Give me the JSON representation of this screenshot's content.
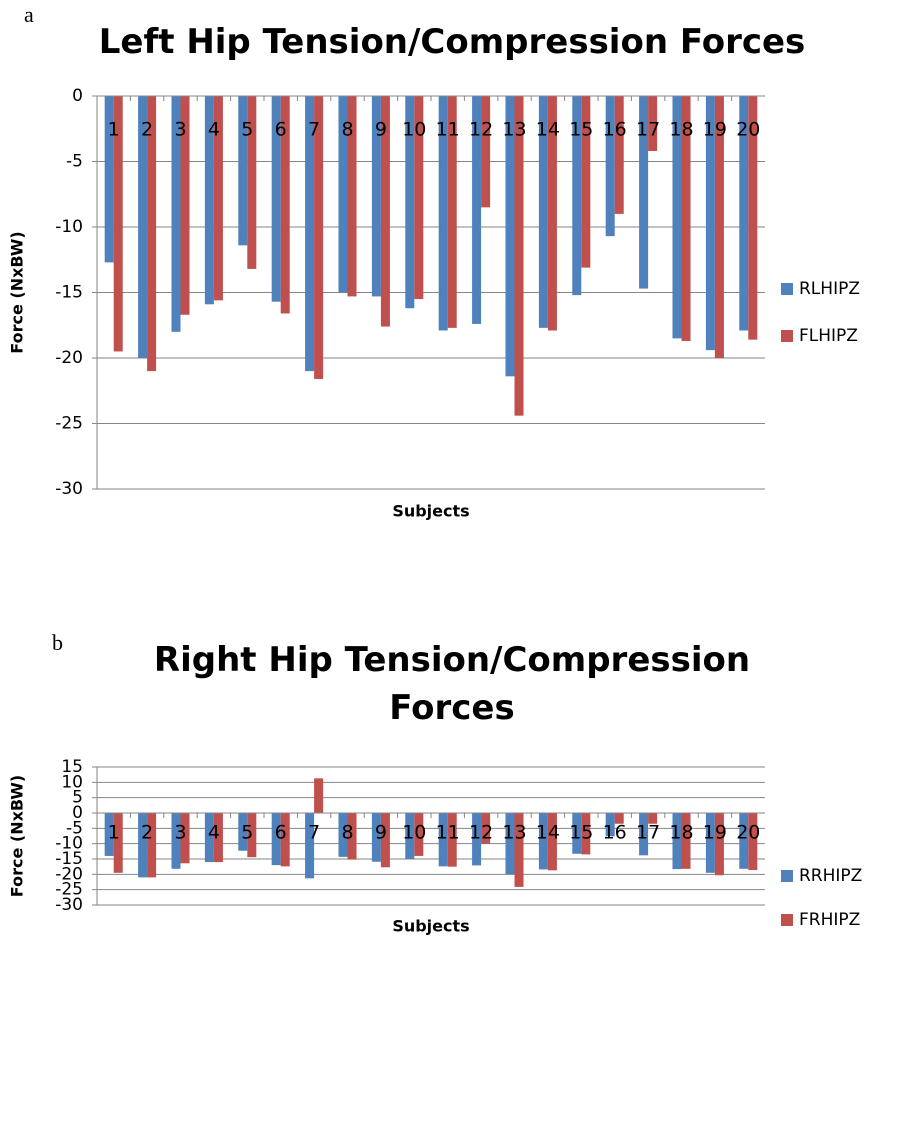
{
  "chart_data": [
    {
      "type": "bar",
      "panel_label": "a",
      "title": "Left Hip Tension/Compression Forces",
      "x_label": "Subjects",
      "y_label": "Force (NxBW)",
      "categories": [
        "1",
        "2",
        "3",
        "4",
        "5",
        "6",
        "7",
        "8",
        "9",
        "10",
        "11",
        "12",
        "13",
        "14",
        "15",
        "16",
        "17",
        "18",
        "19",
        "20"
      ],
      "series": [
        {
          "name": "RLHIPZ",
          "color": "#4f81bd",
          "values": [
            -12.7,
            -20,
            -18,
            -15.9,
            -11.4,
            -15.7,
            -21,
            -15,
            -15.3,
            -16.2,
            -17.9,
            -17.4,
            -21.4,
            -17.7,
            -15.2,
            -10.7,
            -14.7,
            -18.5,
            -19.4,
            -17.9
          ]
        },
        {
          "name": "FLHIPZ",
          "color": "#c0504d",
          "values": [
            -19.5,
            -21,
            -16.7,
            -15.6,
            -13.2,
            -16.6,
            -21.6,
            -15.3,
            -17.6,
            -15.5,
            -17.7,
            -8.5,
            -24.4,
            -17.9,
            -13.1,
            -9,
            -4.2,
            -18.7,
            -20,
            -18.6
          ]
        }
      ],
      "ylim": [
        -30,
        0
      ],
      "yticks": [
        0,
        -5,
        -10,
        -15,
        -20,
        -25,
        -30
      ],
      "grid": true,
      "legend": "right"
    },
    {
      "type": "bar",
      "panel_label": "b",
      "title": "Right Hip Tension/Compression Forces",
      "x_label": "Subjects",
      "y_label": "Force (NxBW)",
      "categories": [
        "1",
        "2",
        "3",
        "4",
        "5",
        "6",
        "7",
        "8",
        "9",
        "10",
        "11",
        "12",
        "13",
        "14",
        "15",
        "16",
        "17",
        "18",
        "19",
        "20"
      ],
      "series": [
        {
          "name": "RRHIPZ",
          "color": "#4f81bd",
          "values": [
            -14,
            -21,
            -18.2,
            -16,
            -12.3,
            -17,
            -21.3,
            -14.3,
            -15.9,
            -15,
            -17.4,
            -17.1,
            -20,
            -18.4,
            -13.3,
            -7.6,
            -13.8,
            -18.3,
            -19.5,
            -18.2
          ]
        },
        {
          "name": "FRHIPZ",
          "color": "#c0504d",
          "values": [
            -19.5,
            -21,
            -16.4,
            -16,
            -14.4,
            -17.4,
            11.3,
            -15.2,
            -17.7,
            -14,
            -17.5,
            -10,
            -24.1,
            -18.7,
            -13.5,
            -3.5,
            -3.5,
            -18.2,
            -20.3,
            -18.6
          ]
        }
      ],
      "ylim": [
        -30,
        15
      ],
      "yticks": [
        15,
        10,
        5,
        0,
        -5,
        -10,
        -15,
        -20,
        -25,
        -30
      ],
      "grid": true,
      "legend": "right"
    }
  ]
}
